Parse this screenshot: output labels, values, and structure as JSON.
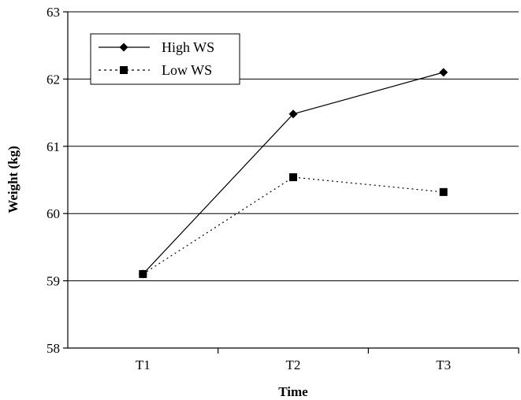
{
  "chart_data": {
    "type": "line",
    "title": "",
    "xlabel": "Time",
    "ylabel": "Weight (kg)",
    "categories": [
      "T1",
      "T2",
      "T3"
    ],
    "ylim": [
      58,
      63
    ],
    "yticks": [
      58,
      59,
      60,
      61,
      62,
      63
    ],
    "grid": true,
    "legend_position": "top-left",
    "series": [
      {
        "name": "High WS",
        "values": [
          59.1,
          61.48,
          62.1
        ],
        "line_style": "solid",
        "marker": "diamond",
        "color": "#000000"
      },
      {
        "name": "Low WS",
        "values": [
          59.1,
          60.54,
          60.32
        ],
        "line_style": "dotted",
        "marker": "square",
        "color": "#000000"
      }
    ]
  }
}
